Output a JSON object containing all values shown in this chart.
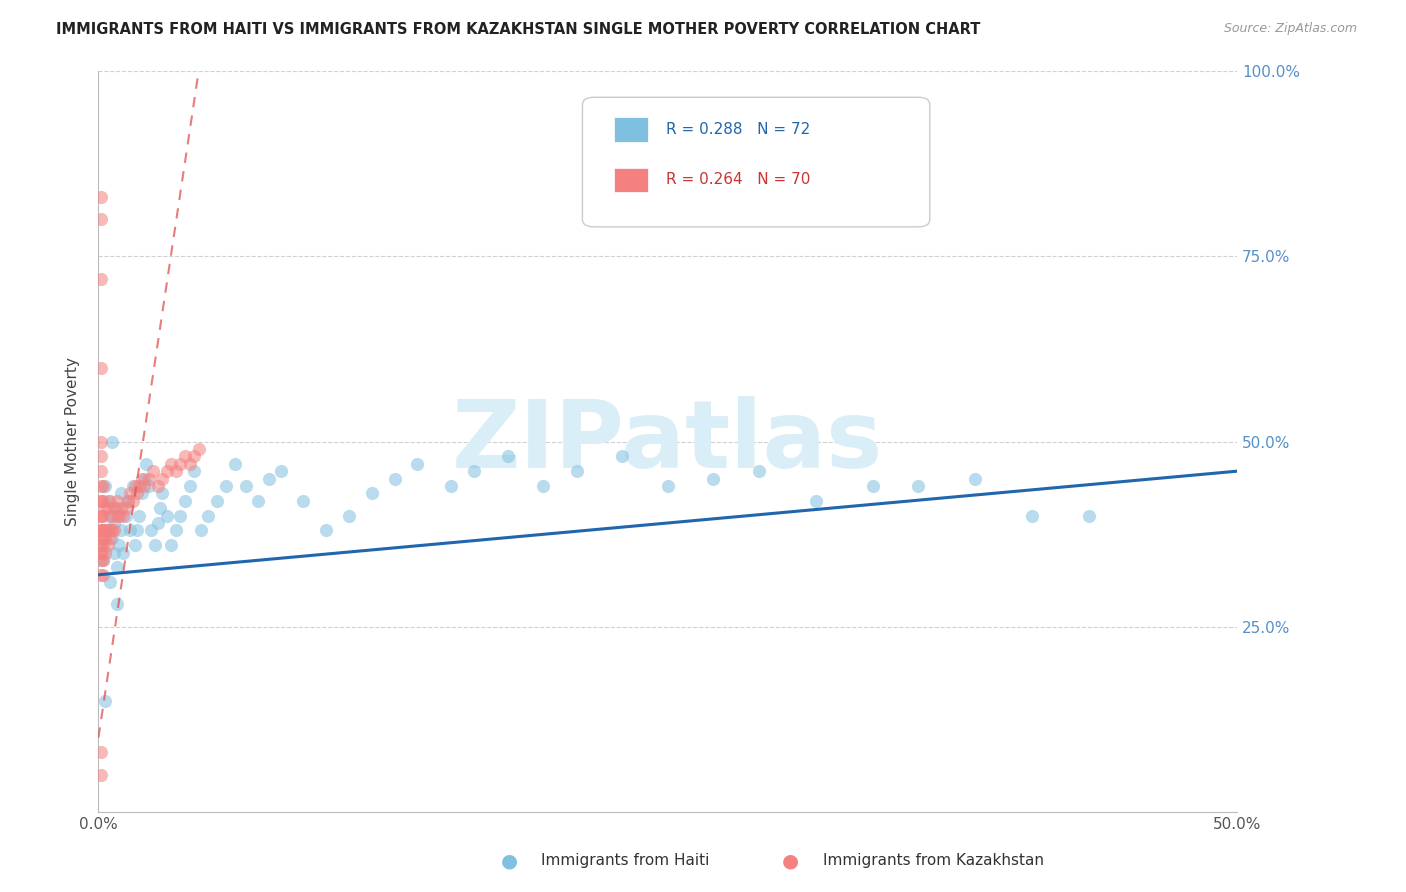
{
  "title": "IMMIGRANTS FROM HAITI VS IMMIGRANTS FROM KAZAKHSTAN SINGLE MOTHER POVERTY CORRELATION CHART",
  "source": "Source: ZipAtlas.com",
  "ylabel": "Single Mother Poverty",
  "xlim": [
    0.0,
    0.5
  ],
  "ylim": [
    0.0,
    1.0
  ],
  "xtick_positions": [
    0.0,
    0.1,
    0.2,
    0.3,
    0.4,
    0.5
  ],
  "xtick_labels": [
    "0.0%",
    "",
    "",
    "",
    "",
    "50.0%"
  ],
  "ytick_positions": [
    0.0,
    0.25,
    0.5,
    0.75,
    1.0
  ],
  "ytick_labels_right": [
    "",
    "25.0%",
    "50.0%",
    "75.0%",
    "100.0%"
  ],
  "haiti_label": "Immigrants from Haiti",
  "kazakhstan_label": "Immigrants from Kazakhstan",
  "haiti_color": "#7fbfdf",
  "kazakhstan_color": "#f48080",
  "haiti_trend_color": "#2166ac",
  "kazakhstan_trend_color": "#e05050",
  "watermark_text": "ZIPatlas",
  "watermark_color": "#daeef8",
  "haiti_R": 0.288,
  "haiti_N": 72,
  "kazakhstan_R": 0.264,
  "kazakhstan_N": 70,
  "haiti_x": [
    0.001,
    0.002,
    0.003,
    0.003,
    0.004,
    0.005,
    0.005,
    0.006,
    0.007,
    0.007,
    0.008,
    0.008,
    0.009,
    0.01,
    0.01,
    0.011,
    0.012,
    0.013,
    0.014,
    0.015,
    0.016,
    0.017,
    0.018,
    0.019,
    0.02,
    0.021,
    0.022,
    0.023,
    0.025,
    0.026,
    0.027,
    0.028,
    0.03,
    0.032,
    0.034,
    0.036,
    0.038,
    0.04,
    0.042,
    0.045,
    0.048,
    0.052,
    0.056,
    0.06,
    0.065,
    0.07,
    0.075,
    0.08,
    0.09,
    0.1,
    0.11,
    0.12,
    0.13,
    0.14,
    0.155,
    0.165,
    0.18,
    0.195,
    0.21,
    0.23,
    0.25,
    0.27,
    0.29,
    0.315,
    0.34,
    0.36,
    0.385,
    0.41,
    0.435,
    0.003,
    0.006,
    0.008
  ],
  "haiti_y": [
    0.36,
    0.34,
    0.38,
    0.44,
    0.42,
    0.31,
    0.4,
    0.37,
    0.35,
    0.39,
    0.33,
    0.41,
    0.36,
    0.38,
    0.43,
    0.35,
    0.4,
    0.42,
    0.38,
    0.44,
    0.36,
    0.38,
    0.4,
    0.43,
    0.45,
    0.47,
    0.44,
    0.38,
    0.36,
    0.39,
    0.41,
    0.43,
    0.4,
    0.36,
    0.38,
    0.4,
    0.42,
    0.44,
    0.46,
    0.38,
    0.4,
    0.42,
    0.44,
    0.47,
    0.44,
    0.42,
    0.45,
    0.46,
    0.42,
    0.38,
    0.4,
    0.43,
    0.45,
    0.47,
    0.44,
    0.46,
    0.48,
    0.44,
    0.46,
    0.48,
    0.44,
    0.45,
    0.46,
    0.42,
    0.44,
    0.44,
    0.45,
    0.4,
    0.4,
    0.15,
    0.5,
    0.28
  ],
  "kazakhstan_x": [
    0.001,
    0.001,
    0.001,
    0.001,
    0.001,
    0.001,
    0.001,
    0.001,
    0.001,
    0.001,
    0.001,
    0.001,
    0.001,
    0.001,
    0.001,
    0.001,
    0.001,
    0.001,
    0.002,
    0.002,
    0.002,
    0.002,
    0.002,
    0.002,
    0.002,
    0.002,
    0.003,
    0.003,
    0.003,
    0.003,
    0.004,
    0.004,
    0.004,
    0.005,
    0.005,
    0.005,
    0.006,
    0.006,
    0.007,
    0.007,
    0.008,
    0.008,
    0.009,
    0.01,
    0.011,
    0.012,
    0.013,
    0.014,
    0.015,
    0.016,
    0.017,
    0.018,
    0.019,
    0.02,
    0.022,
    0.024,
    0.026,
    0.028,
    0.03,
    0.032,
    0.034,
    0.036,
    0.038,
    0.04,
    0.042,
    0.044,
    0.001,
    0.001,
    0.001,
    0.001
  ],
  "kazakhstan_y": [
    0.35,
    0.36,
    0.37,
    0.38,
    0.4,
    0.42,
    0.44,
    0.46,
    0.48,
    0.5,
    0.32,
    0.34,
    0.35,
    0.38,
    0.4,
    0.42,
    0.08,
    0.05,
    0.32,
    0.34,
    0.36,
    0.37,
    0.38,
    0.4,
    0.42,
    0.44,
    0.35,
    0.37,
    0.38,
    0.41,
    0.36,
    0.38,
    0.41,
    0.37,
    0.38,
    0.42,
    0.38,
    0.4,
    0.38,
    0.41,
    0.4,
    0.42,
    0.4,
    0.41,
    0.4,
    0.41,
    0.42,
    0.43,
    0.42,
    0.44,
    0.43,
    0.44,
    0.45,
    0.44,
    0.45,
    0.46,
    0.44,
    0.45,
    0.46,
    0.47,
    0.46,
    0.47,
    0.48,
    0.47,
    0.48,
    0.49,
    0.8,
    0.83,
    0.72,
    0.6
  ],
  "haiti_trend_x0": 0.0,
  "haiti_trend_x1": 0.5,
  "haiti_trend_y0": 0.32,
  "haiti_trend_y1": 0.46,
  "kaz_trend_x0": 0.0,
  "kaz_trend_x1": 0.044,
  "kaz_trend_y0": 0.1,
  "kaz_trend_y1": 1.0
}
